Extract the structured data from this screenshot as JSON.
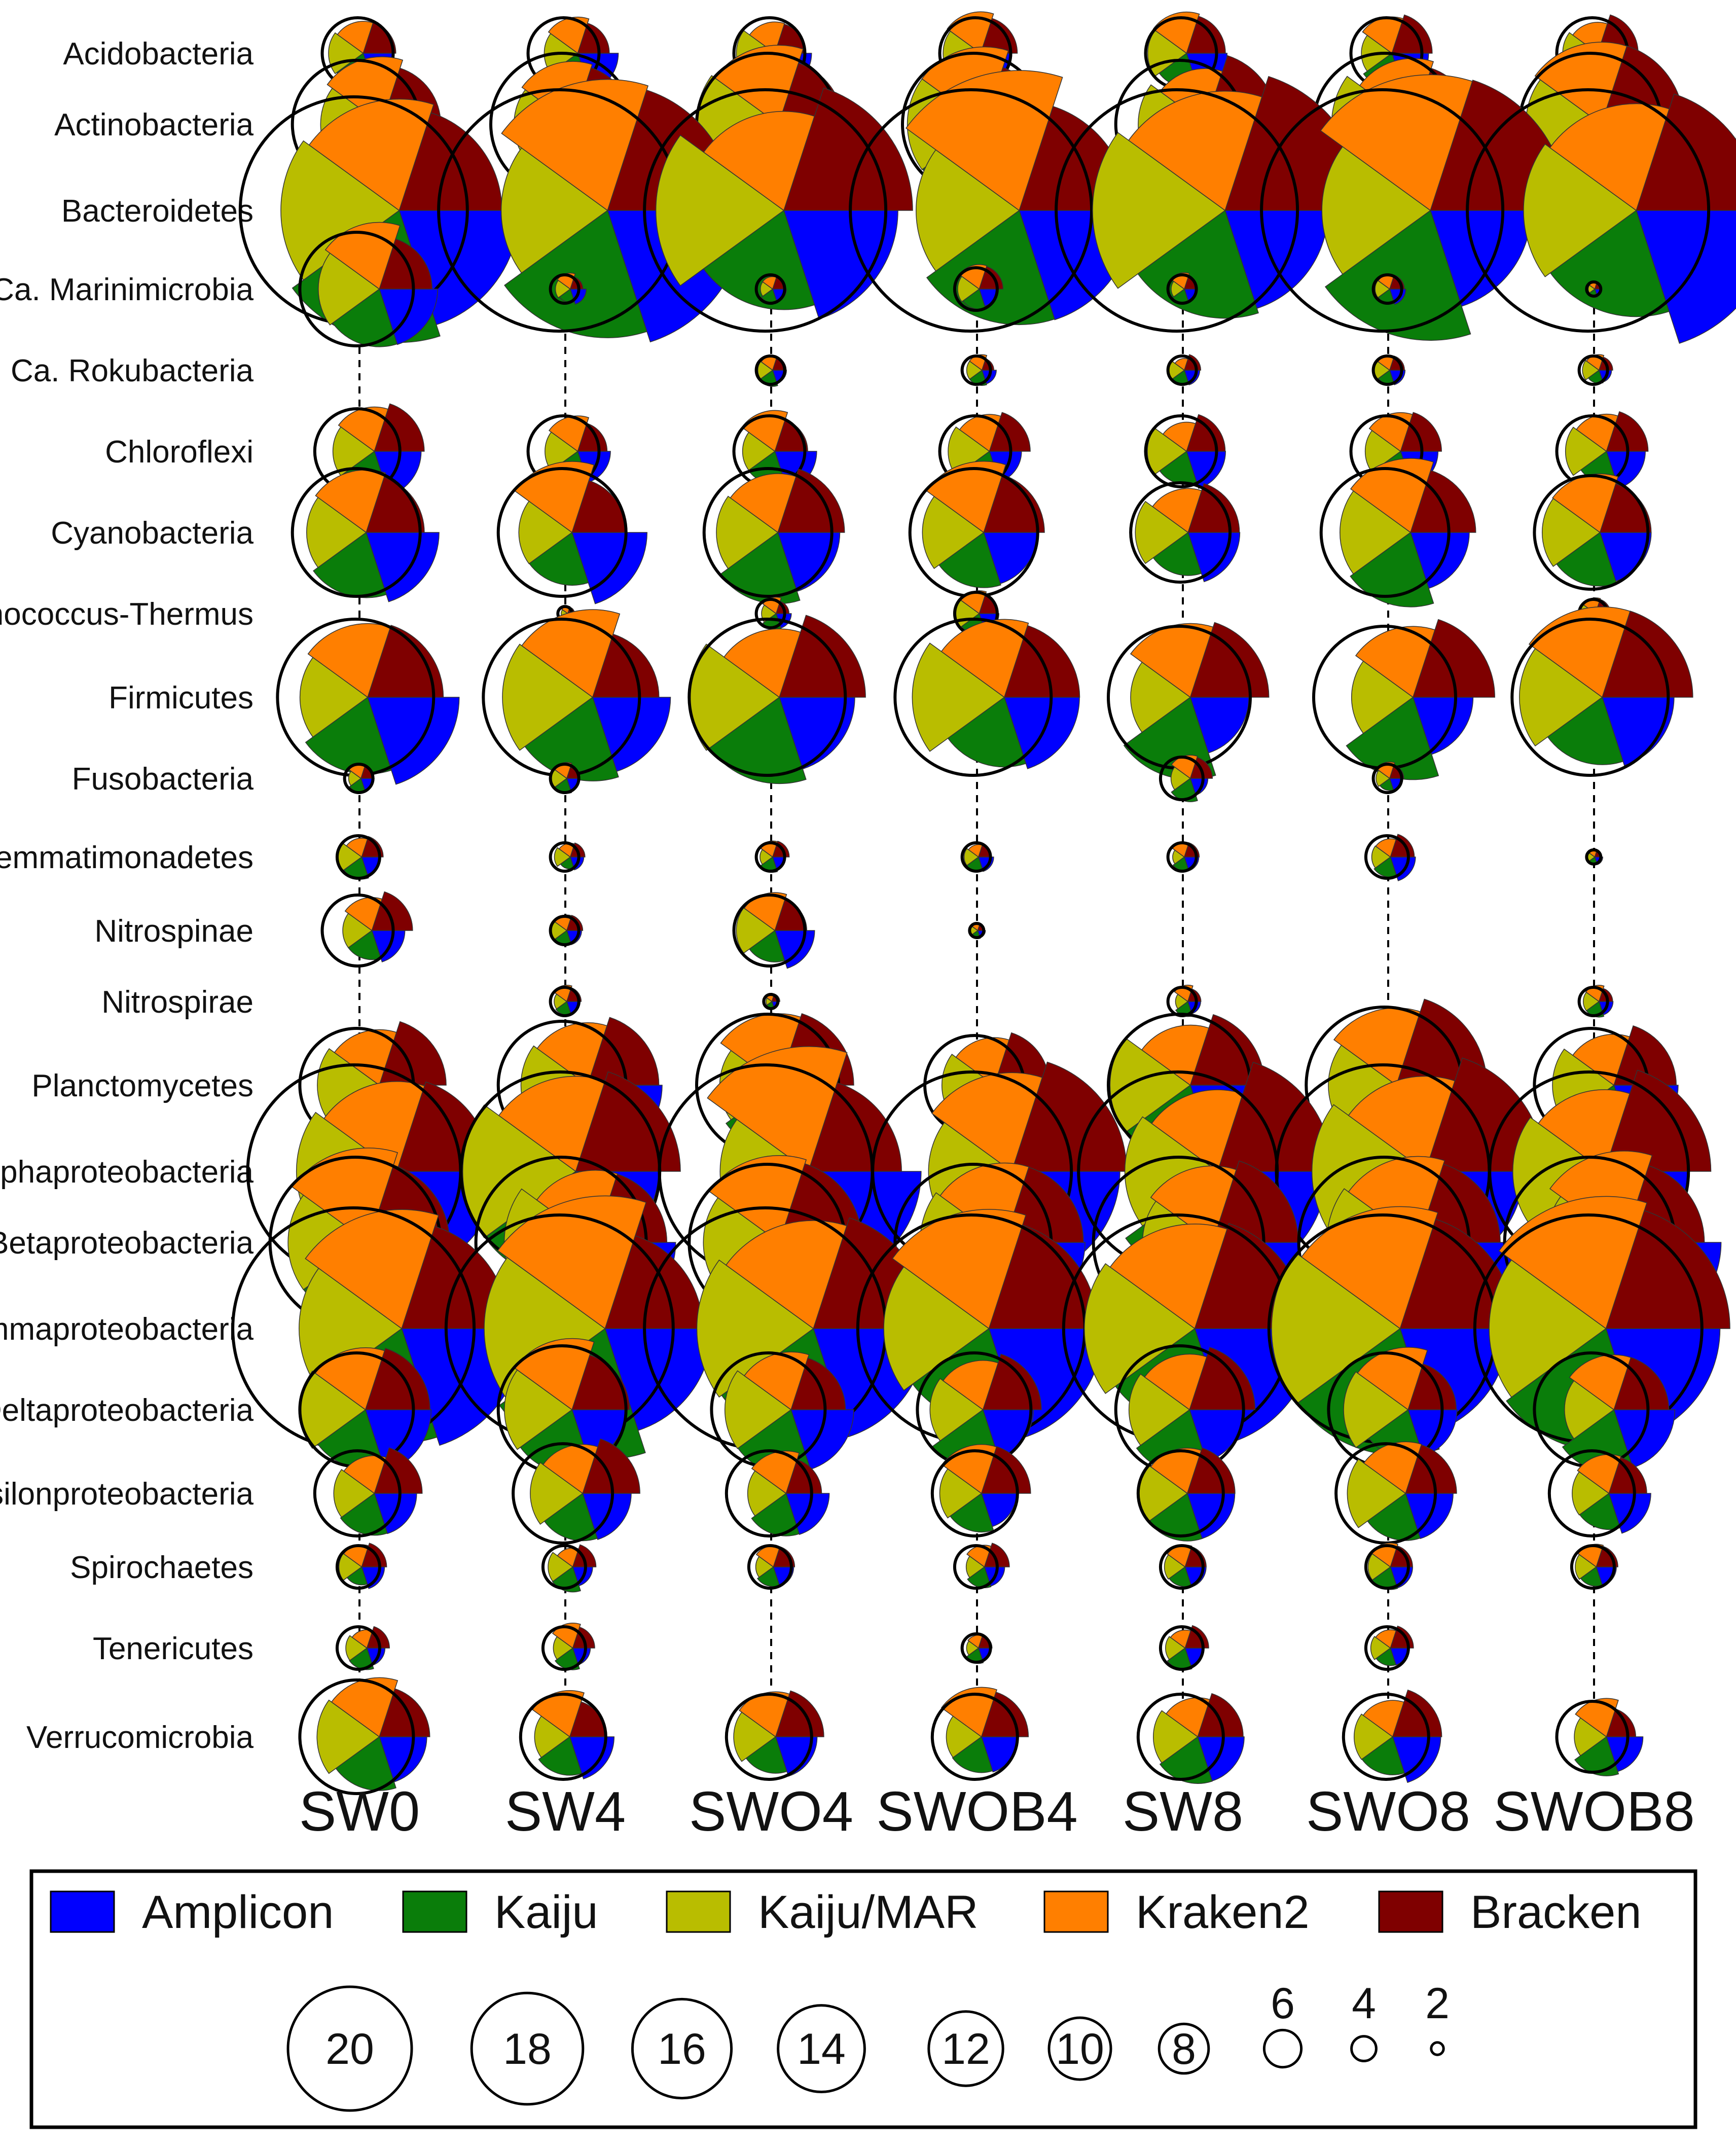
{
  "chart_data": {
    "type": "pie",
    "description_note": "Bubble-pie matrix: each cell is a pie with five method slices; circle size encodes relative abundance (%). Slice extent is approximate.",
    "samples": [
      "SW0",
      "SW4",
      "SWO4",
      "SWOB4",
      "SW8",
      "SWO8",
      "SWOB8"
    ],
    "methods": [
      "Amplicon",
      "Kaiju",
      "Kaiju/MAR",
      "Kraken2",
      "Bracken"
    ],
    "method_colors": {
      "Amplicon": "#0000ff",
      "Kaiju": "#0a7d0a",
      "Kaiju/MAR": "#b9bd00",
      "Kraken2": "#ff7f00",
      "Bracken": "#7f0000"
    },
    "phyla": [
      "Acidobacteria",
      "Actinobacteria",
      "Bacteroidetes",
      "Ca. Marinimicrobia",
      "Ca. Rokubacteria",
      "Chloroflexi",
      "Cyanobacteria",
      "Deinococcus-Thermus",
      "Firmicutes",
      "Fusobacteria",
      "Gemmatimonadetes",
      "Nitrospinae",
      "Nitrospirae",
      "Planctomycetes",
      "Alphaproteobacteria",
      "Betaproteobacteria",
      "Gammaproteobacteria",
      "Deltaproteobacteria",
      "Epsilonproteobacteria",
      "Spirochaetes",
      "Tenericutes",
      "Verrucomicrobia"
    ],
    "size_scale_unit": "relative abundance (%)",
    "abundance": [
      [
        5,
        5,
        5,
        5,
        5,
        5,
        5
      ],
      [
        9,
        10,
        10,
        10,
        9,
        10,
        10
      ],
      [
        16,
        17,
        17,
        17,
        17,
        17,
        17
      ],
      [
        8,
        2,
        2,
        3,
        2,
        2,
        1
      ],
      [
        0,
        0,
        2,
        2,
        2,
        2,
        2
      ],
      [
        6,
        5,
        5,
        5,
        5,
        5,
        5
      ],
      [
        9,
        9,
        9,
        9,
        7,
        9,
        8
      ],
      [
        0,
        1,
        2,
        3,
        0,
        0,
        2
      ],
      [
        11,
        11,
        11,
        11,
        10,
        10,
        11
      ],
      [
        2,
        2,
        0,
        0,
        3,
        2,
        0
      ],
      [
        3,
        2,
        2,
        2,
        2,
        3,
        1
      ],
      [
        5,
        2,
        5,
        1,
        0,
        0,
        0
      ],
      [
        0,
        2,
        1,
        0,
        2,
        0,
        2
      ],
      [
        8,
        9,
        10,
        7,
        10,
        11,
        8
      ],
      [
        15,
        14,
        15,
        14,
        14,
        15,
        14
      ],
      [
        12,
        12,
        11,
        11,
        12,
        12,
        12
      ],
      [
        17,
        16,
        17,
        16,
        16,
        16,
        16
      ],
      [
        8,
        9,
        8,
        8,
        9,
        8,
        8
      ],
      [
        6,
        7,
        6,
        6,
        6,
        7,
        6
      ],
      [
        3,
        3,
        3,
        3,
        3,
        3,
        3
      ],
      [
        3,
        3,
        0,
        2,
        3,
        3,
        0
      ],
      [
        8,
        6,
        6,
        6,
        6,
        6,
        5
      ]
    ],
    "legend": {
      "entries": [
        "Amplicon",
        "Kaiju",
        "Kaiju/MAR",
        "Kraken2",
        "Bracken"
      ],
      "size_labels": [
        "20",
        "18",
        "16",
        "14",
        "12",
        "10",
        "8",
        "6",
        "4",
        "2"
      ],
      "size_values": [
        20,
        18,
        16,
        14,
        12,
        10,
        8,
        6,
        4,
        2
      ]
    }
  }
}
